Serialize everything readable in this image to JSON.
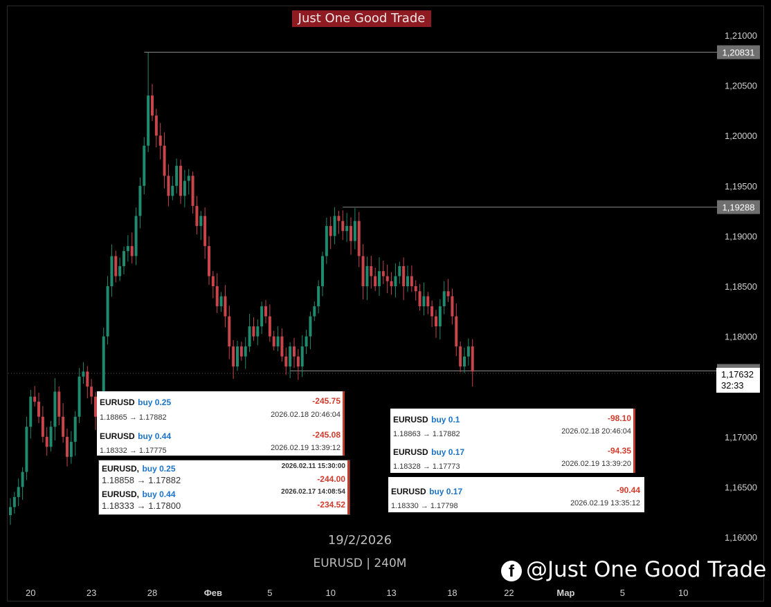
{
  "header": {
    "title": "Just One Good Trade"
  },
  "footer": {
    "date": "19/2/2026",
    "symbol_tf": "EURUSD | 240M"
  },
  "watermark": {
    "icon": "facebook-icon",
    "text": "@Just One Good Trade"
  },
  "colors": {
    "up": "#1f8a6e",
    "down": "#c7454b",
    "bg": "#000000",
    "badge": "#8e1b22",
    "pnl": "#d33a2c",
    "side": "#1a73c8"
  },
  "chart_data": {
    "type": "candlestick",
    "instrument": "EURUSD",
    "timeframe": "240M",
    "ylim": [
      1.158,
      1.212
    ],
    "y_ticks": [
      "1,21000",
      "1,20500",
      "1,20000",
      "1,19500",
      "1,19000",
      "1,18500",
      "1,18000",
      "1,17500",
      "1,17000",
      "1,16500",
      "1,16000"
    ],
    "y_tick_values": [
      1.21,
      1.205,
      1.2,
      1.195,
      1.19,
      1.185,
      1.18,
      1.175,
      1.17,
      1.165,
      1.16
    ],
    "x_ticks": [
      "20",
      "23",
      "28",
      "Фев",
      "5",
      "10",
      "13",
      "18",
      "22",
      "Мар",
      "5",
      "10"
    ],
    "x_tick_slots": [
      5,
      20,
      35,
      50,
      64,
      79,
      94,
      109,
      123,
      137,
      151,
      166
    ],
    "x_slot_range": [
      0,
      175
    ],
    "price_labels": [
      {
        "label": "1,20831",
        "value": 1.20831,
        "from_slot": 33
      },
      {
        "label": "1,19288",
        "value": 1.19288,
        "from_slot": 82
      },
      {
        "label": "1,17656",
        "value": 1.17656,
        "from_slot": 69
      }
    ],
    "current_price": {
      "label": "1,17632",
      "countdown": "32:33",
      "value": 1.17632
    },
    "closes": [
      1.163,
      1.164,
      1.165,
      1.1665,
      1.171,
      1.174,
      1.1735,
      1.172,
      1.17,
      1.169,
      1.171,
      1.1745,
      1.172,
      1.17,
      1.168,
      1.1695,
      1.172,
      1.176,
      1.1765,
      1.175,
      1.174,
      1.172,
      1.1735,
      1.18,
      1.185,
      1.188,
      1.186,
      1.187,
      1.1885,
      1.189,
      1.188,
      1.192,
      1.195,
      1.199,
      1.204,
      1.202,
      1.2,
      1.199,
      1.196,
      1.194,
      1.195,
      1.197,
      1.194,
      1.1955,
      1.196,
      1.193,
      1.191,
      1.192,
      1.189,
      1.186,
      1.185,
      1.183,
      1.184,
      1.182,
      1.179,
      1.177,
      1.179,
      1.178,
      1.179,
      1.181,
      1.18,
      1.181,
      1.183,
      1.182,
      1.18,
      1.179,
      1.18,
      1.178,
      1.177,
      1.179,
      1.178,
      1.177,
      1.179,
      1.18,
      1.182,
      1.183,
      1.185,
      1.188,
      1.191,
      1.19,
      1.192,
      1.1915,
      1.1905,
      1.191,
      1.1895,
      1.1915,
      1.188,
      1.185,
      1.187,
      1.186,
      1.185,
      1.1865,
      1.186,
      1.1855,
      1.185,
      1.186,
      1.187,
      1.185,
      1.186,
      1.185,
      1.1845,
      1.183,
      1.184,
      1.183,
      1.182,
      1.181,
      1.183,
      1.1845,
      1.184,
      1.182,
      1.179,
      1.177,
      1.178,
      1.179,
      1.1765
    ],
    "high_points": [
      1.20831,
      1.19288
    ]
  },
  "trade_boxes": [
    {
      "rows": [
        {
          "symbol": "EURUSD",
          "side": "buy 0.25",
          "pnl": "-245.75",
          "prices": "1.18865 → 1.17882",
          "time": "2026.02.18 20:46:04"
        },
        {
          "symbol": "EURUSD",
          "side": "buy 0.44",
          "pnl": "-245.08",
          "prices": "1.18332 → 1.17775",
          "time": "2026.02.19 13:39:12"
        }
      ]
    },
    {
      "rows": [
        {
          "symbol": "EURUSD,",
          "side": "buy 0.25",
          "time": "2026.02.11 15:30:00",
          "prices": "1.18858 → 1.17882",
          "pnl": "-244.00"
        },
        {
          "symbol": "EURUSD,",
          "side": "buy 0.44",
          "time": "2026.02.17 14:08:54",
          "prices": "1.18333 → 1.17800",
          "pnl": "-234.52"
        }
      ]
    },
    {
      "rows": [
        {
          "symbol": "EURUSD",
          "side": "buy 0.1",
          "pnl": "-98.10",
          "prices": "1.18863 → 1.17882",
          "time": "2026.02.18 20:46:04"
        },
        {
          "symbol": "EURUSD",
          "side": "buy 0.17",
          "pnl": "-94.35",
          "prices": "1.18328 → 1.17773",
          "time": "2026.02.19 13:39:20"
        }
      ]
    },
    {
      "rows": [
        {
          "symbol": "EURUSD",
          "side": "buy 0.17",
          "pnl": "-90.44",
          "prices": "1.18330 → 1.17798",
          "time": "2026.02.19 13:35:12"
        }
      ]
    }
  ]
}
